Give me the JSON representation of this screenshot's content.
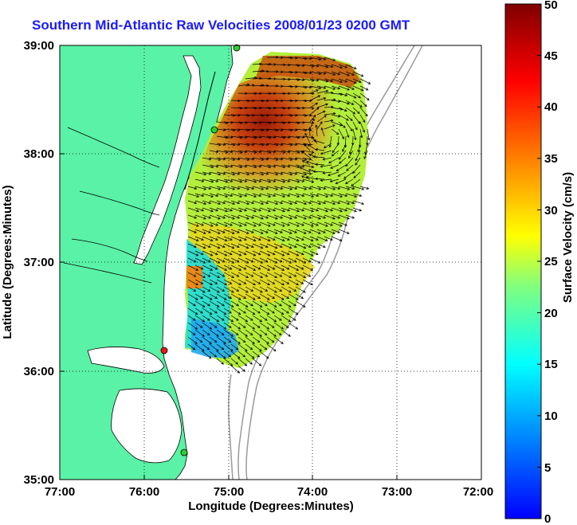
{
  "title": "Southern Mid-Atlantic Raw Velocities 2008/01/23 0200 GMT",
  "xaxis": {
    "label": "Longitude (Degrees:Minutes)",
    "ticks": [
      "77:00",
      "76:00",
      "75:00",
      "74:00",
      "73:00",
      "72:00"
    ]
  },
  "yaxis": {
    "label": "Latitude (Degrees:Minutes)",
    "ticks": [
      "39:00",
      "38:00",
      "37:00",
      "36:00",
      "35:00"
    ]
  },
  "colorbar": {
    "label": "Surface Velocity (cm/s)",
    "ticks": [
      "50",
      "45",
      "40",
      "35",
      "30",
      "25",
      "20",
      "15",
      "10",
      "5",
      "0"
    ]
  },
  "colors": {
    "land": "#5af2a6",
    "title": "#1a1aff",
    "coastline": "#000000",
    "bathymetry": "#9a9a9a",
    "station_green": "#2ad12a",
    "station_red": "#e81818"
  },
  "map_extent": {
    "lon": [
      -77,
      -72
    ],
    "lat": [
      35,
      39
    ]
  },
  "velocity_range": [
    0,
    50
  ]
}
